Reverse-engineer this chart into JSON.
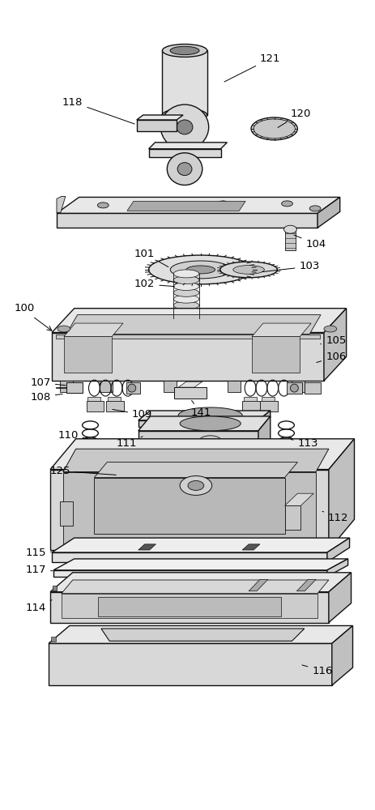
{
  "background_color": "#ffffff",
  "line_color": "#111111",
  "figsize": [
    4.63,
    10.0
  ],
  "dpi": 100,
  "lw_main": 1.0,
  "lw_thin": 0.6
}
